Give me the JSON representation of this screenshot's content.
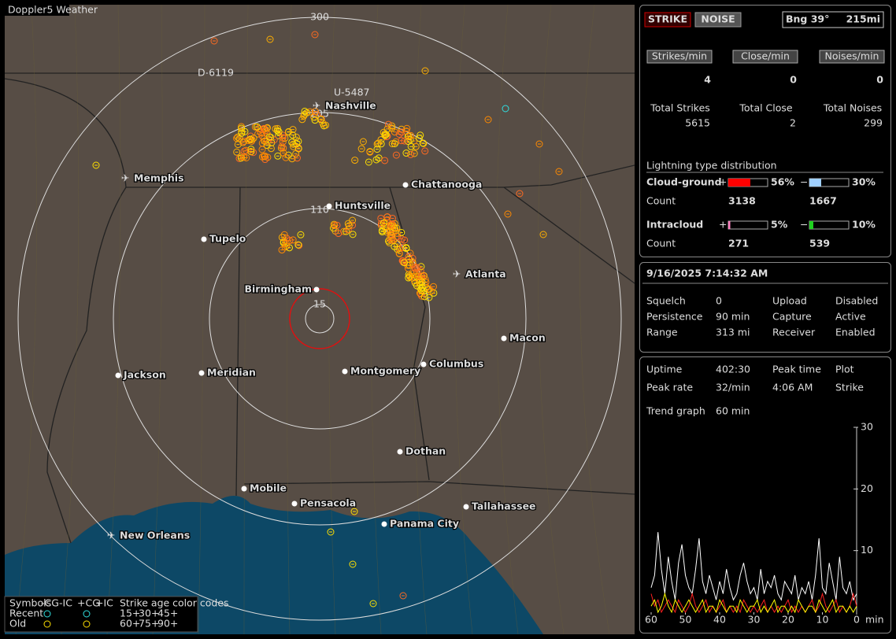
{
  "map": {
    "title": "Doppler5 Weather",
    "range_rings": [
      "300",
      "205",
      "110",
      "15"
    ],
    "stations": [
      "D-6119",
      "U-5487"
    ],
    "cities": [
      "Nashville",
      "Memphis",
      "Chattanooga",
      "Huntsville",
      "Tupelo",
      "Atlanta",
      "Birmingham",
      "Macon",
      "Jackson",
      "Meridian",
      "Montgomery",
      "Columbus",
      "Dothan",
      "Mobile",
      "Pensacola",
      "Tallahassee",
      "Panama City",
      "New Orleans"
    ]
  },
  "legend": {
    "symbols_label": "Symbols",
    "symbols": [
      "-CG",
      "-IC",
      "+CG",
      "+IC"
    ],
    "age_label": "Strike age color codes",
    "rows": [
      "Recent",
      "Old"
    ],
    "ages": [
      "15+",
      "30+",
      "45+",
      "60+",
      "75+",
      "90+"
    ]
  },
  "panel": {
    "mode_buttons": [
      "STRIKE",
      "NOISE"
    ],
    "bearing": "Bng 39°",
    "distance": "215mi",
    "rates": [
      {
        "label": "Strikes/min",
        "value": 4
      },
      {
        "label": "Close/min",
        "value": 0
      },
      {
        "label": "Noises/min",
        "value": 0
      }
    ],
    "totals": [
      {
        "label": "Total Strikes",
        "value": 5615
      },
      {
        "label": "Total Close",
        "value": 2
      },
      {
        "label": "Total Noises",
        "value": 299
      }
    ],
    "distribution": {
      "title": "Lightning type distribution",
      "count_label": "Count",
      "signs": [
        "+",
        "−"
      ],
      "types": [
        {
          "name": "Cloud-ground",
          "pos": {
            "value": 56,
            "label": "56%"
          },
          "neg": {
            "value": 30,
            "label": "30%"
          },
          "pos_count": 3138,
          "neg_count": 1667
        },
        {
          "name": "Intracloud",
          "pos": {
            "value": 5,
            "label": "5%"
          },
          "neg": {
            "value": 10,
            "label": "10%"
          },
          "pos_count": 271,
          "neg_count": 539
        }
      ]
    },
    "datetime": "9/16/2025 7:14:32 AM",
    "settings": [
      {
        "label": "Squelch",
        "value": 0
      },
      {
        "label": "Persistence",
        "value": "90 min"
      },
      {
        "label": "Range",
        "value": "313 mi"
      },
      {
        "label": "Upload",
        "value": "Disabled"
      },
      {
        "label": "Capture",
        "value": "Active"
      },
      {
        "label": "Receiver",
        "value": "Enabled"
      }
    ],
    "stats": [
      {
        "label": "Uptime",
        "value": "402:30"
      },
      {
        "label": "Peak rate",
        "value": "32/min"
      },
      {
        "label": "Peak time",
        "value": "4:06 AM"
      },
      {
        "label": "Plot",
        "value": "Strike"
      },
      {
        "label": "Trend graph",
        "value": "60 min"
      }
    ],
    "trend": {
      "xlim": [
        60,
        0
      ],
      "xticks": [
        60,
        50,
        40,
        30,
        20,
        10,
        0
      ],
      "x_unit": "min",
      "ylim": [
        0,
        30
      ],
      "yticks": [
        10,
        20,
        30
      ],
      "series": [
        {
          "color": "#ffffff",
          "values": [
            4,
            6,
            13,
            7,
            3,
            9,
            5,
            2,
            8,
            11,
            6,
            4,
            3,
            7,
            12,
            5,
            3,
            6,
            4,
            2,
            5,
            3,
            7,
            4,
            2,
            3,
            6,
            8,
            5,
            3,
            4,
            2,
            7,
            3,
            5,
            4,
            6,
            3,
            2,
            5,
            4,
            3,
            6,
            2,
            4,
            3,
            5,
            2,
            6,
            12,
            4,
            3,
            8,
            5,
            2,
            9,
            4,
            3,
            5,
            2,
            3
          ]
        },
        {
          "color": "#ff2020",
          "values": [
            3,
            1,
            2,
            0,
            1,
            2,
            1,
            0,
            2,
            1,
            0,
            1,
            3,
            1,
            0,
            1,
            2,
            0,
            1,
            0,
            1,
            2,
            0,
            1,
            0,
            1,
            0,
            2,
            1,
            0,
            1,
            0,
            1,
            2,
            0,
            1,
            0,
            1,
            0,
            1,
            2,
            0,
            1,
            0,
            1,
            0,
            1,
            2,
            0,
            1,
            3,
            1,
            0,
            1,
            2,
            0,
            1,
            0,
            1,
            3,
            1
          ]
        },
        {
          "color": "#ffff00",
          "values": [
            1,
            2,
            0,
            1,
            3,
            1,
            0,
            2,
            1,
            0,
            1,
            2,
            1,
            0,
            1,
            2,
            0,
            1,
            1,
            0,
            2,
            1,
            0,
            1,
            1,
            0,
            2,
            1,
            0,
            1,
            1,
            2,
            0,
            1,
            0,
            1,
            2,
            0,
            1,
            1,
            0,
            1,
            0,
            2,
            1,
            0,
            1,
            1,
            0,
            2,
            1,
            0,
            1,
            2,
            0,
            1,
            1,
            0,
            1,
            0,
            1
          ]
        }
      ]
    }
  }
}
